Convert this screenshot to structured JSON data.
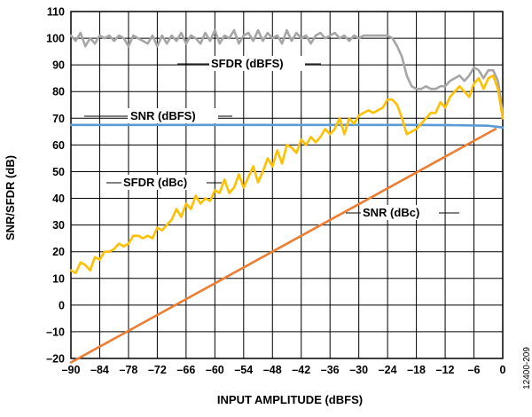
{
  "chart_data": {
    "type": "line",
    "xlabel": "INPUT AMPLITUDE (dBFS)",
    "ylabel": "SNR/SFDR (dB)",
    "xlim": [
      -90,
      0
    ],
    "ylim": [
      -20,
      110
    ],
    "xticks": [
      -90,
      -84,
      -78,
      -72,
      -66,
      -60,
      -54,
      -48,
      -42,
      -36,
      -30,
      -24,
      -18,
      -12,
      -6,
      0
    ],
    "yticks": [
      -20,
      -10,
      0,
      10,
      20,
      30,
      40,
      50,
      60,
      70,
      80,
      90,
      100,
      110
    ],
    "xtick_labels": [
      "–90",
      "–84",
      "–78",
      "–72",
      "–66",
      "–60",
      "–54",
      "–48",
      "–42",
      "–36",
      "–30",
      "–24",
      "–18",
      "–12",
      "–6",
      "0"
    ],
    "ytick_labels": [
      "–20",
      "–10",
      "0",
      "10",
      "20",
      "30",
      "40",
      "50",
      "60",
      "70",
      "80",
      "90",
      "100",
      "110"
    ],
    "grid": true,
    "series": [
      {
        "name": "SFDR (dBFS)",
        "color": "#a6a6a6",
        "x": [
          -90,
          -89,
          -88,
          -87,
          -86,
          -85,
          -84,
          -83,
          -82,
          -81,
          -80,
          -79,
          -78,
          -77,
          -76,
          -75,
          -74,
          -73,
          -72,
          -71,
          -70,
          -69,
          -68,
          -67,
          -66,
          -65,
          -64,
          -63,
          -62,
          -61,
          -60,
          -59,
          -58,
          -57,
          -56,
          -55,
          -54,
          -53,
          -52,
          -51,
          -50,
          -49,
          -48,
          -47,
          -46,
          -45,
          -44,
          -43,
          -42,
          -41,
          -40,
          -39,
          -38,
          -37,
          -36,
          -35,
          -34,
          -33,
          -32,
          -31,
          -30,
          -29,
          -28,
          -27,
          -26,
          -25,
          -24,
          -23,
          -22,
          -21,
          -20,
          -19,
          -18,
          -17,
          -16,
          -15,
          -14,
          -13,
          -12,
          -11,
          -10,
          -9,
          -8,
          -7,
          -6,
          -5,
          -4,
          -3,
          -2,
          -1,
          0
        ],
        "values": [
          101,
          99,
          102,
          97,
          100,
          98,
          101,
          100,
          101,
          99,
          101,
          100,
          97,
          101,
          100,
          99,
          98,
          101,
          97,
          101,
          98,
          101,
          99,
          102,
          98,
          101,
          100,
          98,
          102,
          99,
          103,
          98,
          101,
          100,
          103,
          98,
          101,
          102,
          99,
          103,
          99,
          102,
          100,
          101,
          98,
          103,
          99,
          102,
          100,
          101,
          98,
          101,
          102,
          100,
          101,
          102,
          100,
          101,
          99,
          101,
          100,
          101,
          101,
          101,
          101,
          101,
          101,
          100,
          97,
          93,
          86,
          82,
          81,
          81,
          82,
          81,
          81,
          82,
          82,
          84,
          85,
          86,
          84,
          86,
          89,
          88,
          85,
          88,
          88,
          84,
          72
        ]
      },
      {
        "name": "SNR (dBFS)",
        "color": "#5b9bd5",
        "x": [
          -90,
          -60,
          -30,
          -20,
          -10,
          -6,
          -3,
          -1,
          0
        ],
        "values": [
          67.5,
          67.5,
          67.5,
          67.5,
          67.4,
          67.3,
          67.2,
          66.8,
          66.5
        ]
      },
      {
        "name": "SFDR (dBc)",
        "color": "#ffc000",
        "x": [
          -90,
          -89,
          -88,
          -87,
          -86,
          -85,
          -84,
          -83,
          -82,
          -81,
          -80,
          -79,
          -78,
          -77,
          -76,
          -75,
          -74,
          -73,
          -72,
          -71,
          -70,
          -69,
          -68,
          -67,
          -66,
          -65,
          -64,
          -63,
          -62,
          -61,
          -60,
          -59,
          -58,
          -57,
          -56,
          -55,
          -54,
          -53,
          -52,
          -51,
          -50,
          -49,
          -48,
          -47,
          -46,
          -45,
          -44,
          -43,
          -42,
          -41,
          -40,
          -39,
          -38,
          -37,
          -36,
          -35,
          -34,
          -33,
          -32,
          -31,
          -30,
          -29,
          -28,
          -27,
          -26,
          -25,
          -24,
          -23,
          -22,
          -21,
          -20,
          -19,
          -18,
          -17,
          -16,
          -15,
          -14,
          -13,
          -12,
          -11,
          -10,
          -9,
          -8,
          -7,
          -6,
          -5,
          -4,
          -3,
          -2,
          -1,
          0
        ],
        "values": [
          13,
          12,
          16,
          15,
          13,
          18,
          17,
          20,
          20,
          21,
          23,
          22,
          23,
          26,
          26,
          25,
          26,
          25,
          29,
          28,
          30,
          32,
          36,
          33,
          38,
          36,
          41,
          38,
          40,
          39,
          43,
          42,
          47,
          42,
          44,
          49,
          44,
          48,
          52,
          46,
          50,
          55,
          52,
          58,
          53,
          60,
          59,
          57,
          62,
          60,
          63,
          61,
          63,
          66,
          64,
          66,
          70,
          64,
          70,
          68,
          71,
          72,
          73,
          72,
          73,
          74,
          77,
          77,
          75,
          70,
          64,
          65,
          66,
          68,
          70,
          72,
          72,
          76,
          74,
          78,
          80,
          82,
          80,
          78,
          83,
          85,
          81,
          85,
          86,
          81,
          70
        ]
      },
      {
        "name": "SNR (dBc)",
        "color": "#ed7d31",
        "x": [
          -90,
          -1.5
        ],
        "values": [
          -21.5,
          66
        ]
      }
    ],
    "annotations": [
      "SFDR (dBFS)",
      "SNR (dBFS)",
      "SFDR (dBc)",
      "SNR (dBc)"
    ],
    "figure_id": "12400-209"
  }
}
